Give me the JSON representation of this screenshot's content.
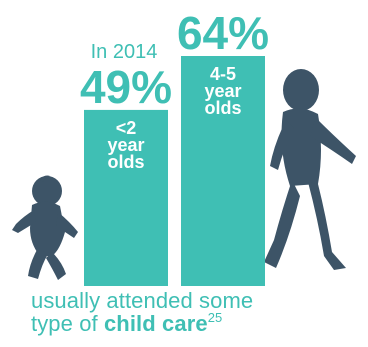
{
  "chart_data": {
    "type": "bar",
    "categories": [
      "<2\nyear\nolds",
      "4-5\nyear\nolds"
    ],
    "values": [
      49,
      64
    ],
    "data_labels": [
      "49%",
      "64%"
    ],
    "ylim": [
      0,
      64
    ],
    "annotation": "In 2014",
    "colors": {
      "bar": "#3fbfb4",
      "bar_text": "#ffffff",
      "silhouette": "#3d5467"
    }
  },
  "caption": {
    "line1": "usually attended some",
    "line2_prefix": "type of ",
    "line2_bold": "child care",
    "footnote": "25"
  },
  "icons": [
    "baby-silhouette-icon",
    "toddler-silhouette-icon"
  ]
}
